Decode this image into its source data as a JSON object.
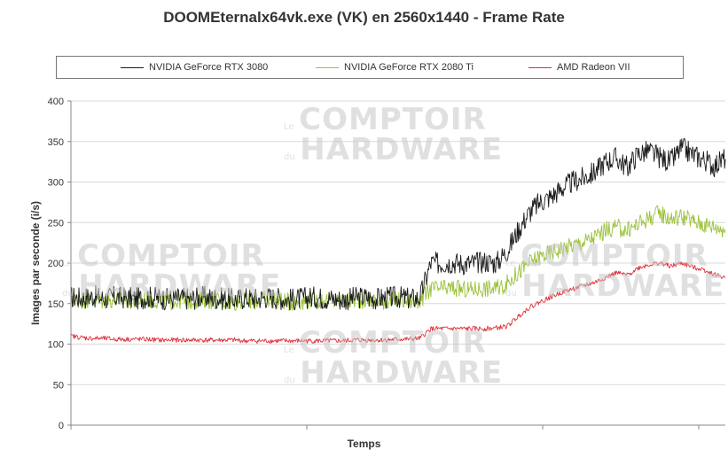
{
  "chart_data": {
    "type": "line",
    "title": "DOOMEternalx64vk.exe (VK) en 2560x1440 - Frame Rate",
    "xlabel": "Temps",
    "ylabel": "Images par seconde (i/s)",
    "ylim": [
      0,
      400
    ],
    "yticks": [
      0,
      50,
      100,
      150,
      200,
      250,
      300,
      350,
      400
    ],
    "grid": "horizontal",
    "legend": "top",
    "x": [
      0,
      3,
      6,
      9,
      12,
      15,
      18,
      21,
      24,
      27,
      30,
      33,
      36,
      39,
      42,
      45,
      48,
      51,
      54,
      57,
      60,
      63,
      66,
      69,
      72,
      75,
      78,
      81,
      84,
      87,
      90,
      93,
      96,
      99,
      102,
      105,
      108,
      111,
      114,
      117,
      120,
      123,
      126,
      129,
      132,
      135,
      138,
      141,
      144,
      147,
      150,
      153,
      156,
      159,
      162,
      165,
      168,
      171,
      174,
      177,
      180
    ],
    "series": [
      {
        "name": "NVIDIA GeForce RTX 3080",
        "color": "#1a1a1a",
        "values": [
          158,
          157,
          159,
          156,
          158,
          157,
          156,
          158,
          157,
          155,
          157,
          156,
          158,
          157,
          156,
          155,
          157,
          156,
          158,
          157,
          155,
          156,
          158,
          157,
          156,
          155,
          157,
          158,
          156,
          157,
          158,
          156,
          157,
          200,
          200,
          201,
          199,
          200,
          202,
          200,
          215,
          240,
          262,
          275,
          282,
          292,
          300,
          305,
          312,
          325,
          330,
          318,
          335,
          338,
          330,
          325,
          342,
          334,
          328,
          320,
          330
        ],
        "noise": 14
      },
      {
        "name": "NVIDIA GeForce RTX 2080 Ti",
        "color": "#9ac238",
        "values": [
          155,
          154,
          155,
          153,
          155,
          154,
          153,
          155,
          154,
          152,
          154,
          153,
          155,
          154,
          153,
          152,
          154,
          153,
          155,
          154,
          152,
          153,
          155,
          154,
          153,
          152,
          154,
          155,
          153,
          154,
          155,
          153,
          154,
          168,
          168,
          169,
          167,
          168,
          169,
          168,
          175,
          188,
          200,
          208,
          213,
          218,
          222,
          226,
          232,
          240,
          244,
          240,
          248,
          256,
          262,
          255,
          258,
          252,
          248,
          245,
          242
        ],
        "noise": 11
      },
      {
        "name": "AMD Radeon VII",
        "color": "#e0303a",
        "values": [
          110,
          108,
          107,
          107,
          106,
          106,
          106,
          106,
          105,
          105,
          105,
          105,
          105,
          105,
          105,
          105,
          104,
          104,
          104,
          104,
          104,
          104,
          104,
          104,
          104,
          104,
          105,
          105,
          105,
          105,
          106,
          106,
          107,
          119,
          119,
          119,
          119,
          119,
          119,
          120,
          122,
          134,
          145,
          152,
          158,
          164,
          168,
          172,
          176,
          182,
          188,
          185,
          194,
          198,
          200,
          196,
          200,
          195,
          192,
          186,
          182
        ],
        "noise": 3
      }
    ]
  },
  "watermark": {
    "line1": "Le",
    "line2": "COMPTOIR",
    "line3": "du",
    "line4": "HARDWARE"
  }
}
